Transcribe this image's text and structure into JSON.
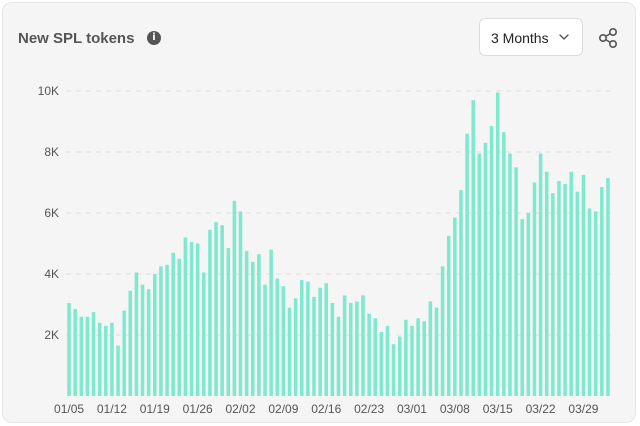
{
  "header": {
    "title": "New SPL tokens",
    "info_glyph": "i",
    "range_label": "3 Months"
  },
  "icons": {
    "info": "info-icon",
    "dropdown": "chevron-down-icon",
    "share": "share-icon"
  },
  "colors": {
    "bar": "#7fe9cf",
    "grid": "#dddddd",
    "text": "#555555"
  },
  "chart_data": {
    "type": "bar",
    "ylim": [
      0,
      10000
    ],
    "y_ticks": [
      2000,
      4000,
      6000,
      8000,
      10000
    ],
    "y_tick_labels": [
      "2K",
      "4K",
      "6K",
      "8K",
      "10K"
    ],
    "x_tick_labels": [
      "01/05",
      "01/12",
      "01/19",
      "01/26",
      "02/02",
      "02/09",
      "02/16",
      "02/23",
      "03/01",
      "03/08",
      "03/15",
      "03/22",
      "03/29"
    ],
    "x_tick_every": 7,
    "grid": true,
    "values": [
      3050,
      2850,
      2600,
      2600,
      2750,
      2400,
      2300,
      2400,
      1650,
      2800,
      3450,
      4050,
      3650,
      3500,
      4000,
      4250,
      4300,
      4700,
      4500,
      5200,
      5050,
      5000,
      4050,
      5450,
      5700,
      5600,
      4850,
      6400,
      6050,
      4750,
      4400,
      4650,
      3650,
      4800,
      3850,
      3600,
      2900,
      3200,
      3800,
      3750,
      3250,
      3550,
      3700,
      3050,
      2600,
      3300,
      3050,
      3100,
      3300,
      2700,
      2550,
      2100,
      2300,
      1700,
      1950,
      2500,
      2300,
      2550,
      2450,
      3100,
      2900,
      4250,
      5250,
      5850,
      6750,
      8600,
      9700,
      7950,
      8300,
      8850,
      9950,
      8650,
      7950,
      7500,
      5800,
      6000,
      7000,
      7950,
      7350,
      6650,
      7050,
      6950,
      7350,
      6700,
      7250,
      6150,
      6050,
      6850,
      7150
    ]
  }
}
